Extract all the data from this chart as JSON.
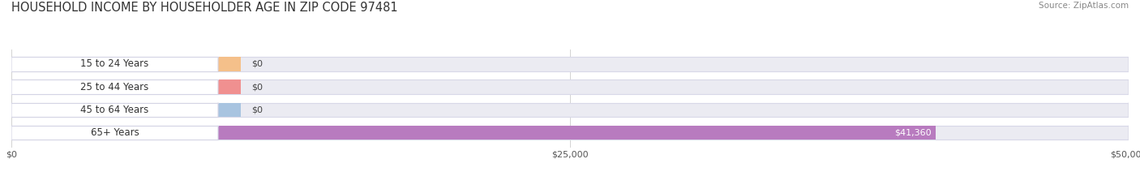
{
  "title": "HOUSEHOLD INCOME BY HOUSEHOLDER AGE IN ZIP CODE 97481",
  "source": "Source: ZipAtlas.com",
  "categories": [
    "15 to 24 Years",
    "25 to 44 Years",
    "45 to 64 Years",
    "65+ Years"
  ],
  "values": [
    0,
    0,
    0,
    41360
  ],
  "max_val": 50000,
  "bar_colors": [
    "#f5c08a",
    "#f09090",
    "#a8c4e0",
    "#b87bbf"
  ],
  "bar_bg_color": "#ebebf2",
  "bar_border_color": "#d8d8e8",
  "label_bg_color": "#ffffff",
  "label_border_color": "#d5d5e5",
  "bar_height": 0.62,
  "tick_labels": [
    "$0",
    "$25,000",
    "$50,000"
  ],
  "tick_values": [
    0,
    25000,
    50000
  ],
  "value_labels": [
    "$0",
    "$0",
    "$0",
    "$41,360"
  ],
  "background_color": "#ffffff",
  "title_fontsize": 10.5,
  "source_fontsize": 7.5,
  "label_fontsize": 8.5,
  "value_fontsize": 8,
  "tick_fontsize": 8,
  "grid_color": "#cccccc"
}
